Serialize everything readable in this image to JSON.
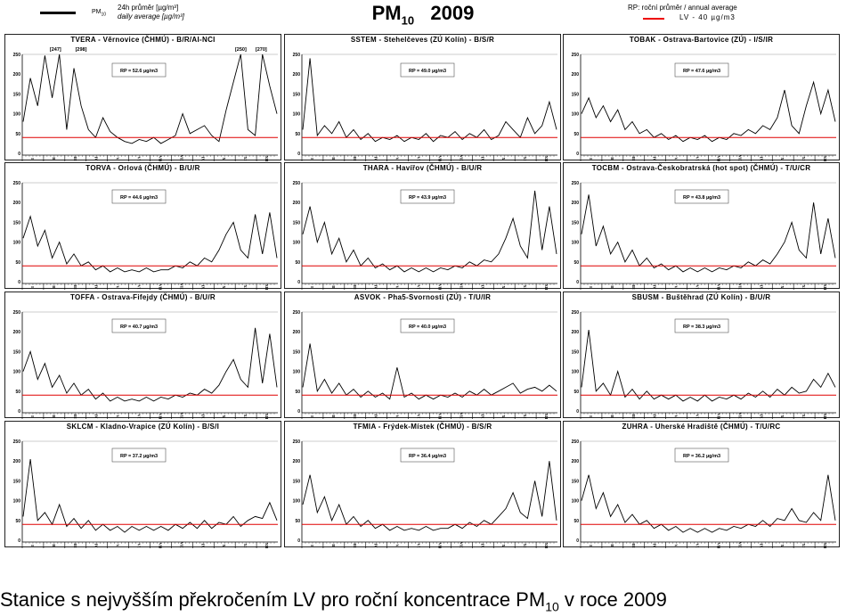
{
  "header": {
    "legend_pm": "PM",
    "legend_pm_sub": "10",
    "legend_daily_cz": "24h průměr [µg/m³]",
    "legend_daily_en": "daily average [µg/m³]",
    "title_main": "PM",
    "title_sub": "10",
    "title_year": "2009",
    "legend_rp": "RP: roční průměr / annual average",
    "legend_lv": "LV - 40 µg/m3"
  },
  "caption": {
    "prefix": "Stanice s nejvyšším překročením LV pro roční koncentrace PM",
    "sub": "10",
    "suffix": " v roce 2009"
  },
  "colors": {
    "series": "#000000",
    "limit": "#e00000"
  },
  "chart_data": {
    "type": "line",
    "ylim": [
      0,
      250
    ],
    "yticks": [
      0,
      50,
      100,
      150,
      200,
      250
    ],
    "months": [
      "I",
      "II",
      "III",
      "IV",
      "V",
      "VI",
      "VII",
      "VIII",
      "IX",
      "X",
      "XI",
      "XII"
    ],
    "limit_value": 40,
    "panels": [
      {
        "title": "TVERA - Věrnovice (ČHMÚ) - B/R/AI-NCI",
        "rp": "RP = 52.6 µg/m3",
        "peaks": [
          {
            "label": "[247]",
            "t": 0.13
          },
          {
            "label": "[298]",
            "t": 0.23
          },
          {
            "label": "[250]",
            "t": 0.855
          },
          {
            "label": "[270]",
            "t": 0.935
          }
        ],
        "values": [
          80,
          190,
          120,
          247,
          140,
          298,
          60,
          215,
          120,
          60,
          40,
          90,
          55,
          40,
          30,
          25,
          35,
          30,
          40,
          25,
          35,
          45,
          100,
          50,
          60,
          70,
          45,
          30,
          110,
          180,
          250,
          60,
          45,
          270,
          170,
          100
        ]
      },
      {
        "title": "SSTEM - Stehelčeves (ZÚ Kolín) - B/S/R",
        "rp": "RP = 49.0 µg/m3",
        "values": [
          60,
          240,
          45,
          70,
          50,
          80,
          40,
          60,
          35,
          50,
          30,
          40,
          35,
          45,
          30,
          40,
          35,
          50,
          30,
          45,
          40,
          55,
          35,
          50,
          40,
          60,
          35,
          45,
          80,
          60,
          40,
          90,
          50,
          70,
          130,
          60
        ]
      },
      {
        "title": "TOBAK - Ostrava-Bartovice (ZÚ) - I/S/IR",
        "rp": "RP = 47.6 µg/m3",
        "values": [
          100,
          140,
          90,
          120,
          80,
          110,
          60,
          80,
          50,
          60,
          40,
          50,
          35,
          45,
          30,
          40,
          35,
          45,
          30,
          40,
          35,
          50,
          45,
          60,
          50,
          70,
          60,
          90,
          160,
          70,
          50,
          120,
          180,
          100,
          160,
          80
        ]
      },
      {
        "title": "TORVA - Orlová (ČHMÚ) - B/U/R",
        "rp": "RP = 44.6 µg/m3",
        "values": [
          110,
          165,
          90,
          130,
          60,
          100,
          45,
          70,
          40,
          50,
          30,
          40,
          25,
          35,
          25,
          30,
          25,
          35,
          25,
          30,
          30,
          40,
          35,
          50,
          40,
          60,
          50,
          80,
          120,
          150,
          80,
          60,
          170,
          70,
          175,
          60
        ]
      },
      {
        "title": "THARA - Havířov (ČHMÚ) - B/U/R",
        "rp": "RP = 43.9 µg/m3",
        "values": [
          120,
          190,
          100,
          150,
          70,
          110,
          50,
          80,
          40,
          60,
          35,
          45,
          30,
          40,
          25,
          35,
          25,
          35,
          25,
          35,
          30,
          40,
          35,
          50,
          40,
          55,
          50,
          70,
          110,
          160,
          90,
          60,
          230,
          80,
          190,
          70
        ]
      },
      {
        "title": "TOCBM - Ostrava-Českobratrská (hot spot) (ČHMÚ) - T/U/CR",
        "rp": "RP = 43.8 µg/m3",
        "values": [
          120,
          220,
          90,
          140,
          70,
          100,
          50,
          80,
          40,
          60,
          35,
          45,
          30,
          40,
          25,
          35,
          25,
          35,
          25,
          35,
          30,
          40,
          35,
          50,
          40,
          55,
          45,
          70,
          100,
          150,
          80,
          60,
          200,
          70,
          160,
          60
        ]
      },
      {
        "title": "TOFFA - Ostrava-Fifejdy (ČHMÚ) - B/U/R",
        "rp": "RP = 40.7 µg/m3",
        "values": [
          100,
          150,
          80,
          120,
          60,
          90,
          45,
          70,
          40,
          55,
          30,
          45,
          25,
          35,
          25,
          30,
          25,
          35,
          25,
          35,
          30,
          40,
          35,
          45,
          40,
          55,
          45,
          65,
          100,
          130,
          80,
          60,
          210,
          70,
          195,
          60
        ]
      },
      {
        "title": "ASVOK - Pha5-Svornosti (ZÚ) - T/U/IR",
        "rp": "RP = 40.0 µg/m3",
        "values": [
          60,
          170,
          50,
          80,
          45,
          70,
          40,
          55,
          35,
          50,
          35,
          45,
          30,
          110,
          35,
          45,
          30,
          40,
          30,
          40,
          35,
          45,
          35,
          50,
          40,
          55,
          40,
          50,
          60,
          70,
          45,
          55,
          60,
          50,
          65,
          50
        ]
      },
      {
        "title": "SBUSM - Buštěhrad (ZÚ Kolín) - B/U/R",
        "rp": "RP = 38.3 µg/m3",
        "values": [
          60,
          205,
          50,
          70,
          40,
          100,
          35,
          55,
          30,
          50,
          30,
          40,
          30,
          40,
          25,
          35,
          25,
          40,
          25,
          35,
          30,
          40,
          30,
          45,
          35,
          50,
          35,
          55,
          40,
          60,
          45,
          50,
          80,
          60,
          95,
          60
        ]
      },
      {
        "title": "SKLCM - Kladno-Vrapice (ZÚ Kolín) - B/S/I",
        "rp": "RP = 37.2 µg/m3",
        "values": [
          60,
          205,
          50,
          70,
          40,
          90,
          35,
          55,
          30,
          50,
          25,
          40,
          25,
          35,
          20,
          35,
          25,
          35,
          25,
          35,
          25,
          40,
          30,
          45,
          30,
          50,
          30,
          45,
          40,
          60,
          35,
          50,
          60,
          55,
          95,
          50
        ]
      },
      {
        "title": "TFMIA - Frýdek-Místek (ČHMÚ) - B/S/R",
        "rp": "RP = 36.4 µg/m3",
        "values": [
          90,
          165,
          70,
          110,
          50,
          90,
          40,
          60,
          35,
          50,
          30,
          40,
          25,
          35,
          25,
          30,
          25,
          35,
          25,
          30,
          30,
          40,
          30,
          45,
          35,
          50,
          40,
          60,
          80,
          120,
          70,
          55,
          150,
          60,
          200,
          50
        ]
      },
      {
        "title": "ZUHRA - Uherské Hradiště (ČHMÚ) - T/U/RC",
        "rp": "RP = 36.2 µg/m3",
        "values": [
          100,
          165,
          80,
          120,
          60,
          90,
          45,
          65,
          40,
          50,
          30,
          40,
          25,
          35,
          20,
          30,
          20,
          30,
          20,
          30,
          25,
          35,
          30,
          40,
          35,
          50,
          35,
          55,
          50,
          80,
          50,
          45,
          70,
          50,
          165,
          50
        ]
      }
    ]
  }
}
